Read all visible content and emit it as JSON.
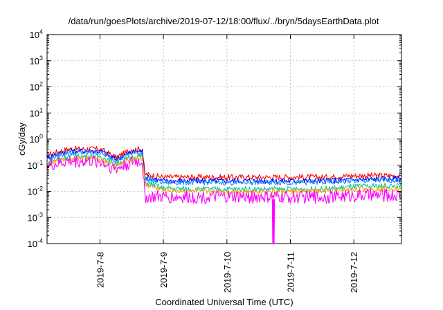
{
  "chart_data": {
    "type": "line",
    "title": "/data/run/goesPlots/archive/2019-07-12/18:00/flux/../bryn/5daysEarthData.plot",
    "xlabel": "Coordinated Universal Time (UTC)",
    "ylabel": "cGy/day",
    "yscale": "log",
    "ylim": [
      0.0001,
      10000
    ],
    "y_ticks": [
      {
        "base": "10",
        "exp": "-4",
        "value": 0.0001
      },
      {
        "base": "10",
        "exp": "-3",
        "value": 0.001
      },
      {
        "base": "10",
        "exp": "-2",
        "value": 0.01
      },
      {
        "base": "10",
        "exp": "-1",
        "value": 0.1
      },
      {
        "base": "10",
        "exp": "0",
        "value": 1
      },
      {
        "base": "10",
        "exp": "1",
        "value": 10
      },
      {
        "base": "10",
        "exp": "2",
        "value": 100
      },
      {
        "base": "10",
        "exp": "3",
        "value": 1000
      },
      {
        "base": "10",
        "exp": "4",
        "value": 10000
      }
    ],
    "x_range": [
      "2019-07-07 04:00",
      "2019-07-12 18:00"
    ],
    "x_ticks": [
      "2019-7-8",
      "2019-7-9",
      "2019-7-10",
      "2019-7-11",
      "2019-7-12"
    ],
    "grid": true,
    "legend": "none",
    "series": [
      {
        "color": "#ff0000",
        "x": [
          "2019-07-07 04:00",
          "2019-07-07 12:00",
          "2019-07-08 00:00",
          "2019-07-08 06:00",
          "2019-07-08 12:00",
          "2019-07-08 16:00",
          "2019-07-08 17:00",
          "2019-07-09 00:00",
          "2019-07-09 12:00",
          "2019-07-10 00:00",
          "2019-07-10 12:00",
          "2019-07-11 00:00",
          "2019-07-11 12:00",
          "2019-07-12 00:00",
          "2019-07-12 12:00",
          "2019-07-12 18:00"
        ],
        "values": [
          0.25,
          0.42,
          0.42,
          0.2,
          0.4,
          0.42,
          0.045,
          0.035,
          0.035,
          0.035,
          0.035,
          0.035,
          0.035,
          0.04,
          0.04,
          0.04
        ]
      },
      {
        "color": "#0000ff",
        "x": [
          "2019-07-07 04:00",
          "2019-07-07 12:00",
          "2019-07-08 00:00",
          "2019-07-08 06:00",
          "2019-07-08 12:00",
          "2019-07-08 16:00",
          "2019-07-08 17:00",
          "2019-07-09 00:00",
          "2019-07-09 12:00",
          "2019-07-10 00:00",
          "2019-07-10 12:00",
          "2019-07-11 00:00",
          "2019-07-11 12:00",
          "2019-07-12 00:00",
          "2019-07-12 12:00",
          "2019-07-12 18:00"
        ],
        "values": [
          0.2,
          0.35,
          0.35,
          0.17,
          0.32,
          0.35,
          0.035,
          0.025,
          0.025,
          0.025,
          0.025,
          0.025,
          0.025,
          0.028,
          0.03,
          0.03
        ]
      },
      {
        "color": "#1e90ff",
        "x": [
          "2019-07-07 04:00",
          "2019-07-07 12:00",
          "2019-07-08 00:00",
          "2019-07-08 06:00",
          "2019-07-08 12:00",
          "2019-07-08 16:00",
          "2019-07-08 17:00",
          "2019-07-09 00:00",
          "2019-07-09 12:00",
          "2019-07-10 00:00",
          "2019-07-10 12:00",
          "2019-07-11 00:00",
          "2019-07-11 12:00",
          "2019-07-12 00:00",
          "2019-07-12 12:00",
          "2019-07-12 18:00"
        ],
        "values": [
          0.18,
          0.3,
          0.3,
          0.15,
          0.28,
          0.3,
          0.03,
          0.022,
          0.022,
          0.022,
          0.022,
          0.022,
          0.022,
          0.025,
          0.027,
          0.027
        ]
      },
      {
        "color": "#00c8a0",
        "x": [
          "2019-07-07 04:00",
          "2019-07-07 12:00",
          "2019-07-08 00:00",
          "2019-07-08 06:00",
          "2019-07-08 12:00",
          "2019-07-08 16:00",
          "2019-07-08 17:00",
          "2019-07-09 00:00",
          "2019-07-09 12:00",
          "2019-07-10 00:00",
          "2019-07-10 12:00",
          "2019-07-11 00:00",
          "2019-07-11 12:00",
          "2019-07-12 00:00",
          "2019-07-12 12:00",
          "2019-07-12 18:00"
        ],
        "values": [
          0.13,
          0.22,
          0.22,
          0.11,
          0.2,
          0.22,
          0.022,
          0.013,
          0.012,
          0.012,
          0.012,
          0.012,
          0.012,
          0.015,
          0.016,
          0.016
        ]
      },
      {
        "color": "#ffa500",
        "x": [
          "2019-07-07 04:00",
          "2019-07-07 12:00",
          "2019-07-08 00:00",
          "2019-07-08 06:00",
          "2019-07-08 12:00",
          "2019-07-08 16:00",
          "2019-07-08 17:00",
          "2019-07-09 00:00",
          "2019-07-09 12:00",
          "2019-07-10 00:00",
          "2019-07-10 12:00",
          "2019-07-11 00:00",
          "2019-07-11 12:00",
          "2019-07-12 00:00",
          "2019-07-12 12:00",
          "2019-07-12 18:00"
        ],
        "values": [
          0.11,
          0.18,
          0.18,
          0.09,
          0.17,
          0.18,
          0.018,
          0.011,
          0.01,
          0.01,
          0.01,
          0.01,
          0.01,
          0.012,
          0.013,
          0.013
        ]
      },
      {
        "color": "#ff00ff",
        "x": [
          "2019-07-07 04:00",
          "2019-07-07 12:00",
          "2019-07-08 00:00",
          "2019-07-08 06:00",
          "2019-07-08 12:00",
          "2019-07-08 16:00",
          "2019-07-08 17:00",
          "2019-07-09 00:00",
          "2019-07-09 12:00",
          "2019-07-10 00:00",
          "2019-07-10 12:00",
          "2019-07-11 00:00",
          "2019-07-11 12:00",
          "2019-07-12 00:00",
          "2019-07-12 12:00",
          "2019-07-12 18:00"
        ],
        "values": [
          0.09,
          0.14,
          0.14,
          0.07,
          0.13,
          0.14,
          0.006,
          0.006,
          0.006,
          0.006,
          0.006,
          0.006,
          0.006,
          0.007,
          0.007,
          0.007
        ]
      },
      {
        "color": "#ff00ff",
        "x": [
          "2019-07-10 17:20",
          "2019-07-10 17:30",
          "2019-07-10 17:40",
          "2019-07-10 17:50"
        ],
        "values": [
          0.005,
          0.0001,
          0.0001,
          0.005
        ]
      }
    ]
  }
}
